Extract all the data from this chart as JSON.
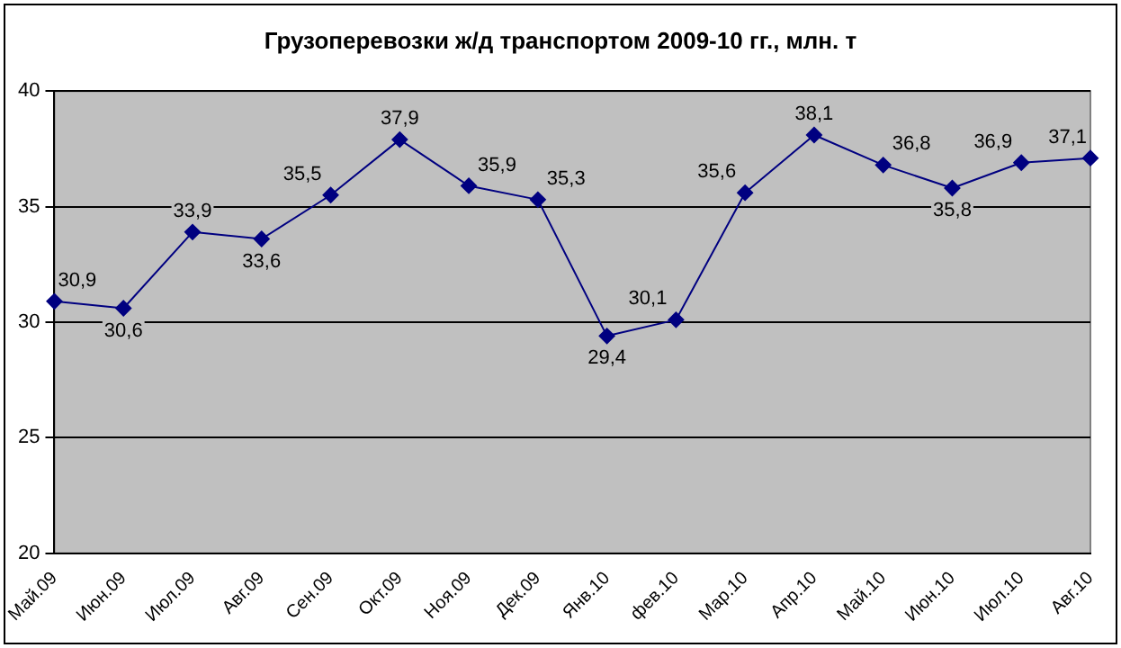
{
  "chart_data": {
    "type": "line",
    "title": "Грузоперевозки ж/д транспортом 2009-10 гг., млн. т",
    "categories": [
      "Май.09",
      "Июн.09",
      "Июл.09",
      "Авг.09",
      "Сен.09",
      "Окт.09",
      "Ноя.09",
      "Дек.09",
      "Янв.10",
      "фев.10",
      "Мар.10",
      "Апр.10",
      "Май.10",
      "Июн.10",
      "Июл.10",
      "Авг.10"
    ],
    "series": [
      {
        "color": "#000080",
        "values": [
          30.9,
          30.6,
          33.9,
          33.6,
          35.5,
          37.9,
          35.9,
          35.3,
          29.4,
          30.1,
          35.6,
          38.1,
          36.8,
          35.8,
          36.9,
          37.1
        ],
        "value_labels": [
          "30,9",
          "30,6",
          "33,9",
          "33,6",
          "35,5",
          "37,9",
          "35,9",
          "35,3",
          "29,4",
          "30,1",
          "35,6",
          "38,1",
          "36,8",
          "35,8",
          "36,9",
          "37,1"
        ]
      }
    ],
    "ylim": [
      20,
      40
    ],
    "yticks": [
      20,
      25,
      30,
      35,
      40
    ],
    "grid": "y",
    "legend": false,
    "marker": "diamond",
    "line_style": "solid"
  }
}
